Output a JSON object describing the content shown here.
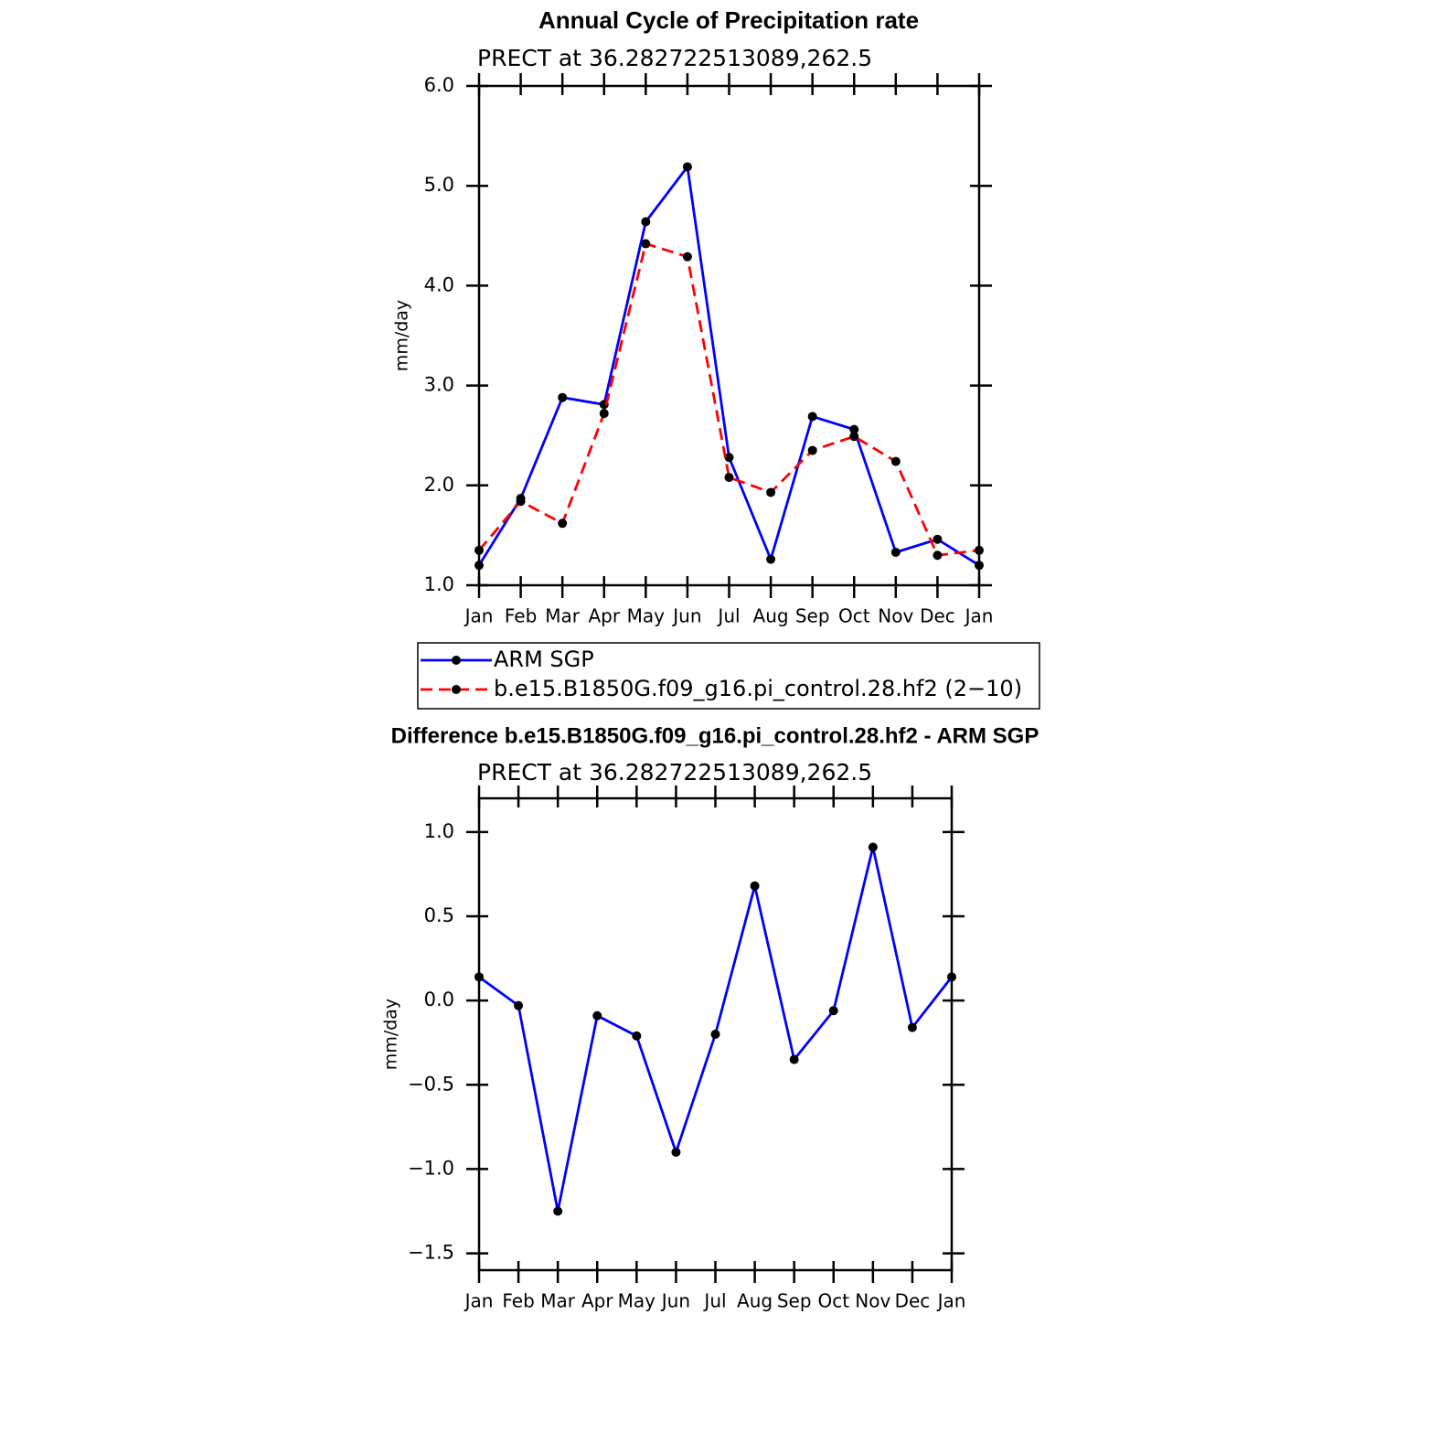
{
  "chart_data": [
    {
      "type": "line",
      "title": "Annual Cycle of Precipitation rate",
      "subtitle": "PRECT at 36.282722513089,262.5",
      "y_label": "mm/day",
      "categories": [
        "Jan",
        "Feb",
        "Mar",
        "Apr",
        "May",
        "Jun",
        "Jul",
        "Aug",
        "Sep",
        "Oct",
        "Nov",
        "Dec",
        "Jan"
      ],
      "series": [
        {
          "name": "ARM SGP",
          "color": "#0000ff",
          "dashed": false,
          "values": [
            1.2,
            1.87,
            2.88,
            2.81,
            4.64,
            5.19,
            2.28,
            1.26,
            2.69,
            2.56,
            1.33,
            1.46,
            1.2
          ]
        },
        {
          "name": "b.e15.B1850G.f09_g16.pi_control.28.hf2 (2−10)",
          "color": "#ff0000",
          "dashed": true,
          "values": [
            1.35,
            1.84,
            1.62,
            2.72,
            4.42,
            4.29,
            2.08,
            1.93,
            2.35,
            2.49,
            2.24,
            1.3,
            1.35
          ]
        }
      ],
      "ylim": [
        1,
        6
      ],
      "yticks": [
        {
          "value": 1,
          "label": "1.0"
        },
        {
          "value": 2,
          "label": "2.0"
        },
        {
          "value": 3,
          "label": "3.0"
        },
        {
          "value": 4,
          "label": "4.0"
        },
        {
          "value": 5,
          "label": "5.0"
        },
        {
          "value": 6,
          "label": "6.0"
        }
      ],
      "legend": "below"
    },
    {
      "type": "line",
      "title": "Difference b.e15.B1850G.f09_g16.pi_control.28.hf2 - ARM SGP",
      "subtitle": "PRECT at 36.282722513089,262.5",
      "y_label": "mm/day",
      "categories": [
        "Jan",
        "Feb",
        "Mar",
        "Apr",
        "May",
        "Jun",
        "Jul",
        "Aug",
        "Sep",
        "Oct",
        "Nov",
        "Dec",
        "Jan"
      ],
      "series": [
        {
          "color": "#0000ff",
          "dashed": false,
          "values": [
            0.14,
            -0.03,
            -1.25,
            -0.09,
            -0.21,
            -0.9,
            -0.2,
            0.68,
            -0.35,
            -0.06,
            0.91,
            -0.16,
            0.14
          ]
        }
      ],
      "ylim": [
        -1.6,
        1.2
      ],
      "yticks": [
        {
          "value": -1.5,
          "label": "−1.5"
        },
        {
          "value": -1,
          "label": "−1.0"
        },
        {
          "value": -0.5,
          "label": "−0.5"
        },
        {
          "value": 0,
          "label": "0.0"
        },
        {
          "value": 0.5,
          "label": "0.5"
        },
        {
          "value": 1,
          "label": "1.0"
        }
      ]
    }
  ]
}
